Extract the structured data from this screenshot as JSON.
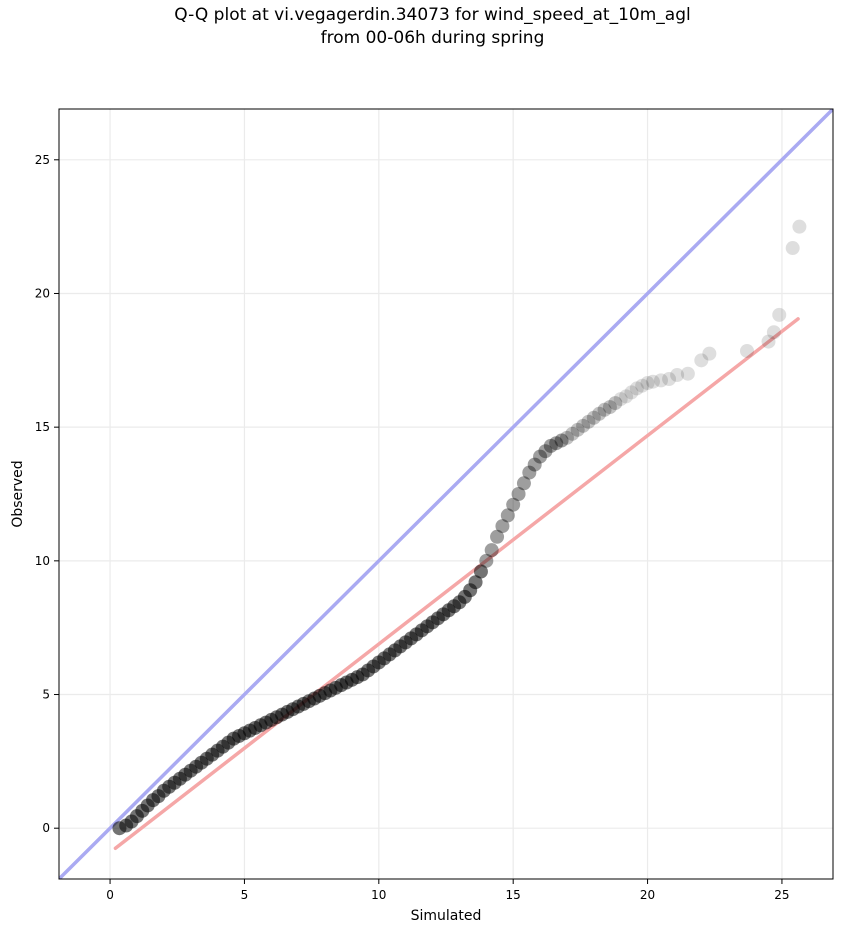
{
  "chart_data": {
    "type": "scatter",
    "title": "Q-Q plot at vi.vegagerdin.34073 for wind_speed_at_10m_agl\nfrom 00-06h during spring",
    "xlabel": "Simulated",
    "ylabel": "Observed",
    "xlim": [
      -1.9,
      26.9
    ],
    "ylim": [
      -1.9,
      26.9
    ],
    "xticks": [
      0,
      5,
      10,
      15,
      20,
      25
    ],
    "yticks": [
      0,
      5,
      10,
      15,
      20,
      25
    ],
    "grid": true,
    "colors": {
      "points": "#000000",
      "reference_line": "#aaaaf2",
      "fit_line": "#f5a7a7",
      "grid": "#ebebeb"
    },
    "reference_line": {
      "name": "1:1 line",
      "slope": 1,
      "intercept": 0
    },
    "fit_line": {
      "x": [
        0.2,
        25.6
      ],
      "y": [
        -0.75,
        19.05
      ]
    },
    "series": [
      {
        "x": [
          0.35,
          0.6,
          0.8,
          1.0,
          1.2,
          1.4,
          1.6,
          1.8,
          2.0,
          2.2,
          2.4,
          2.6,
          2.8,
          3.0,
          3.2,
          3.4,
          3.6,
          3.8,
          4.0,
          4.2,
          4.4,
          4.6,
          4.8,
          5.0,
          5.2,
          5.4,
          5.6,
          5.8,
          6.0,
          6.2,
          6.4,
          6.6,
          6.8,
          7.0,
          7.2,
          7.4,
          7.6,
          7.8,
          8.0,
          8.2,
          8.4,
          8.6,
          8.8,
          9.0,
          9.2,
          9.4,
          9.6,
          9.8,
          10.0,
          10.2,
          10.4,
          10.6,
          10.8,
          11.0,
          11.2,
          11.4,
          11.6,
          11.8,
          12.0,
          12.2,
          12.4,
          12.6,
          12.8,
          13.0,
          13.2,
          13.4,
          13.6,
          13.8,
          14.0,
          14.2,
          14.4,
          14.6,
          14.8,
          15.0,
          15.2,
          15.4,
          15.6,
          15.8,
          16.0,
          16.2,
          16.4,
          16.6,
          16.8,
          17.0,
          17.2,
          17.4,
          17.6,
          17.8,
          18.0,
          18.2,
          18.4,
          18.6,
          18.8,
          19.0,
          19.2,
          19.4,
          19.6,
          19.8,
          20.0,
          20.2,
          20.5,
          20.8,
          21.1,
          21.5,
          22.0,
          22.3,
          23.7,
          24.5,
          24.7,
          24.9,
          25.4,
          25.65
        ],
        "y": [
          0.0,
          0.1,
          0.25,
          0.45,
          0.65,
          0.85,
          1.05,
          1.2,
          1.4,
          1.55,
          1.7,
          1.85,
          2.0,
          2.15,
          2.3,
          2.45,
          2.6,
          2.75,
          2.9,
          3.05,
          3.2,
          3.35,
          3.45,
          3.55,
          3.65,
          3.75,
          3.85,
          3.95,
          4.05,
          4.15,
          4.25,
          4.35,
          4.45,
          4.55,
          4.65,
          4.75,
          4.85,
          4.95,
          5.05,
          5.15,
          5.25,
          5.35,
          5.45,
          5.55,
          5.65,
          5.75,
          5.9,
          6.05,
          6.2,
          6.35,
          6.5,
          6.65,
          6.8,
          6.95,
          7.1,
          7.25,
          7.4,
          7.55,
          7.7,
          7.85,
          8.0,
          8.15,
          8.3,
          8.45,
          8.65,
          8.9,
          9.2,
          9.6,
          10.0,
          10.4,
          10.9,
          11.3,
          11.7,
          12.1,
          12.5,
          12.9,
          13.3,
          13.6,
          13.9,
          14.1,
          14.3,
          14.4,
          14.5,
          14.6,
          14.75,
          14.9,
          15.05,
          15.2,
          15.35,
          15.5,
          15.65,
          15.75,
          15.9,
          16.05,
          16.15,
          16.3,
          16.45,
          16.55,
          16.65,
          16.7,
          16.75,
          16.8,
          16.95,
          17.0,
          17.5,
          17.75,
          17.85,
          18.2,
          18.55,
          19.2,
          21.7,
          22.5
        ]
      }
    ]
  }
}
